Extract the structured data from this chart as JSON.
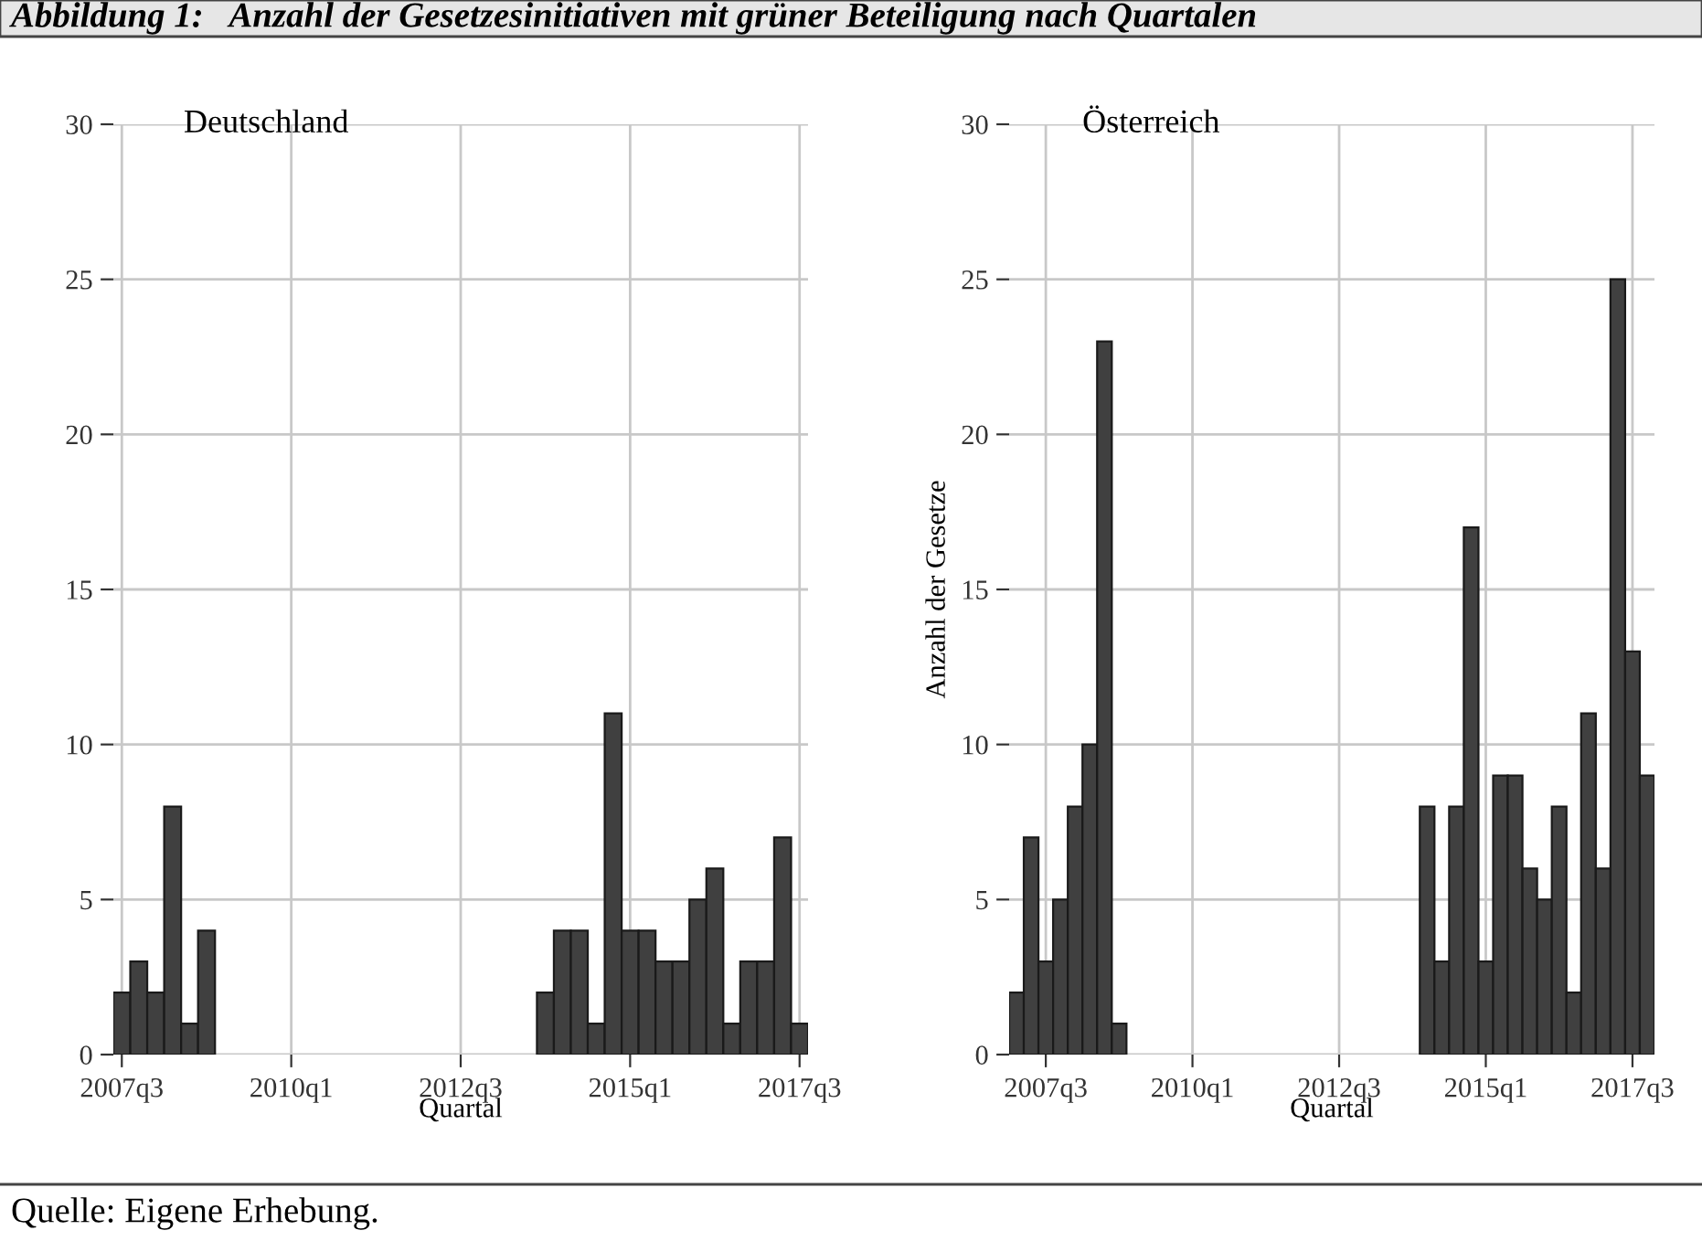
{
  "chart_data": [
    {
      "type": "bar",
      "title": "Abbildung 1:   Anzahl der Gesetzesinitiativen mit grüner Beteiligung nach Quartalen",
      "subtitle": "Deutschland",
      "xlabel": "Quartal",
      "annotations": [
        "Quelle: Eigene Erhebung."
      ],
      "color": "#404040",
      "categories": [
        "2007q3",
        null,
        null,
        null,
        null,
        null,
        null,
        null,
        null,
        null,
        "2010q1",
        null,
        null,
        null,
        null,
        null,
        null,
        null,
        null,
        null,
        "2012q3",
        null,
        null,
        null,
        null,
        null,
        null,
        null,
        null,
        null,
        "2015q1",
        null,
        null,
        null,
        null,
        null,
        null,
        null,
        null,
        null,
        "2017q3"
      ],
      "values": [
        2,
        3,
        2,
        8,
        1,
        4,
        0,
        0,
        0,
        0,
        0,
        0,
        0,
        0,
        0,
        0,
        0,
        0,
        0,
        0,
        0,
        0,
        0,
        0,
        0,
        2,
        4,
        4,
        1,
        11,
        4,
        4,
        3,
        3,
        5,
        6,
        1,
        3,
        3,
        7,
        1
      ],
      "ylim": [
        0,
        30
      ],
      "yticks": [
        0,
        5,
        10,
        15,
        20,
        25,
        30
      ],
      "grid": true
    },
    {
      "type": "bar",
      "subtitle": "Österreich",
      "xlabel": "Quartal",
      "ylabel": "Anzahl der Gesetze",
      "color": "#404040",
      "categories": [
        null,
        null,
        "2007q3",
        null,
        null,
        null,
        null,
        null,
        null,
        null,
        null,
        null,
        "2010q1",
        null,
        null,
        null,
        null,
        null,
        null,
        null,
        null,
        null,
        "2012q3",
        null,
        null,
        null,
        null,
        null,
        null,
        null,
        null,
        null,
        "2015q1",
        null,
        null,
        null,
        null,
        null,
        null,
        null,
        null,
        null,
        "2017q3",
        null
      ],
      "values": [
        2,
        7,
        3,
        5,
        8,
        10,
        23,
        1,
        0,
        0,
        0,
        0,
        0,
        0,
        0,
        0,
        0,
        0,
        0,
        0,
        0,
        0,
        0,
        0,
        0,
        0,
        0,
        0,
        8,
        3,
        8,
        17,
        3,
        9,
        9,
        6,
        5,
        8,
        2,
        11,
        6,
        25,
        13,
        9
      ],
      "ylim": [
        0,
        30
      ],
      "yticks": [
        0,
        5,
        10,
        15,
        20,
        25,
        30
      ],
      "grid": true
    }
  ]
}
